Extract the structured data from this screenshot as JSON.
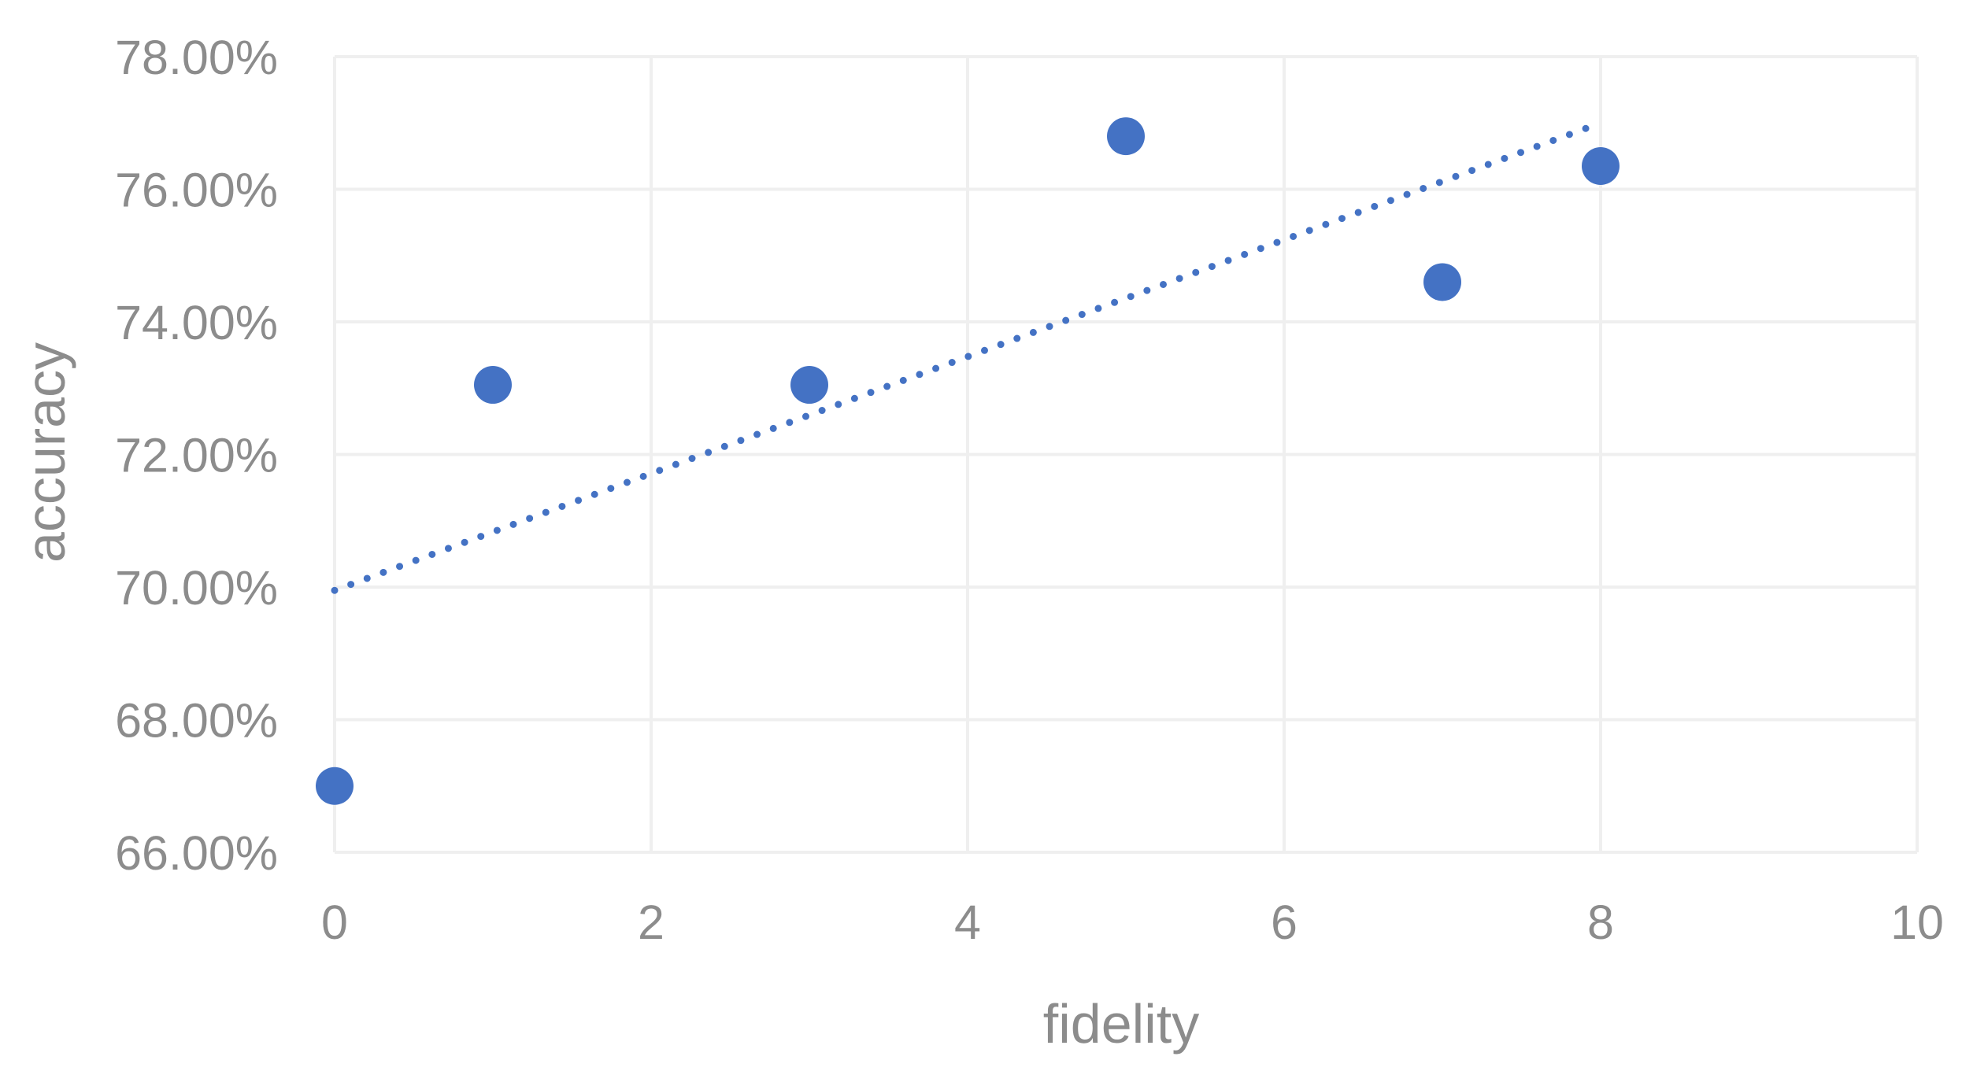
{
  "chart_data": {
    "type": "scatter",
    "title": "",
    "xlabel": "fidelity",
    "ylabel": "accuracy",
    "xlim": [
      0,
      10
    ],
    "ylim": [
      0.66,
      0.78
    ],
    "x_ticks": [
      0,
      2,
      4,
      6,
      8,
      10
    ],
    "y_ticks": [
      0.66,
      0.68,
      0.7,
      0.72,
      0.74,
      0.76,
      0.78
    ],
    "y_tick_format": "percent_2dp",
    "grid": true,
    "legend": "none",
    "series": [
      {
        "points": [
          {
            "x": 0,
            "y": 0.67
          },
          {
            "x": 1,
            "y": 0.7305
          },
          {
            "x": 3,
            "y": 0.7305
          },
          {
            "x": 5,
            "y": 0.768
          },
          {
            "x": 7,
            "y": 0.746
          },
          {
            "x": 8,
            "y": 0.7635
          }
        ],
        "color": "#4472c4"
      }
    ],
    "trendline": {
      "type": "linear",
      "style": "dotted",
      "color": "#4472c4",
      "x_range": [
        0,
        8
      ],
      "y_start": 0.6995,
      "y_end": 0.77
    },
    "colors": {
      "grid": "#efefef",
      "axis_text": "#8c8c8c",
      "marker": "#4472c4"
    }
  }
}
